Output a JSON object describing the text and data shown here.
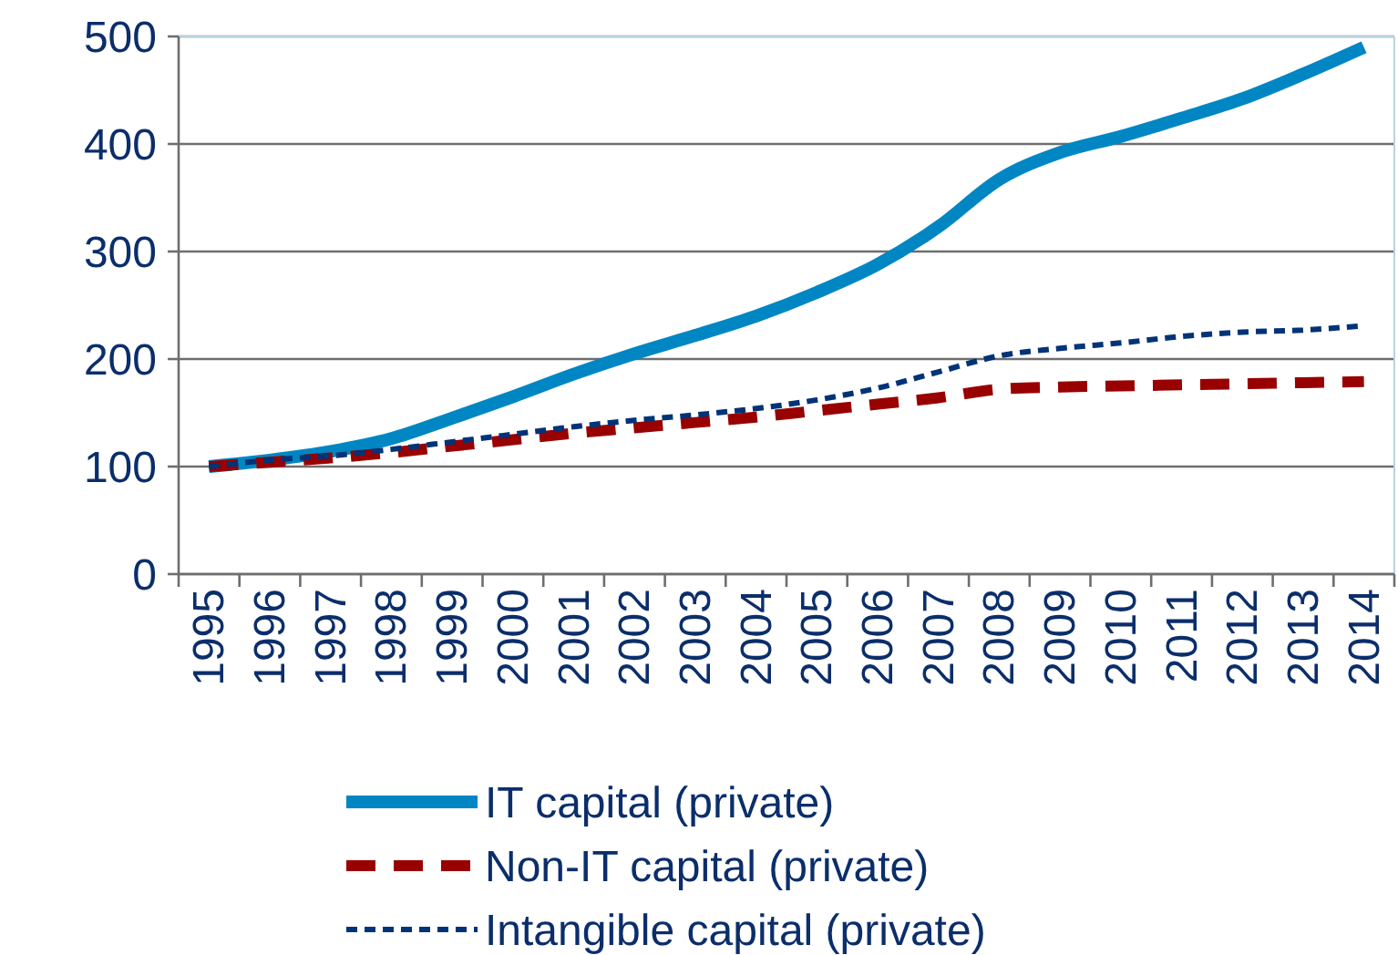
{
  "chart_data": {
    "type": "line",
    "categories": [
      "1995",
      "1996",
      "1997",
      "1998",
      "1999",
      "2000",
      "2001",
      "2002",
      "2003",
      "2004",
      "2005",
      "2006",
      "2007",
      "2008",
      "2009",
      "2010",
      "2011",
      "2012",
      "2013",
      "2014"
    ],
    "ylim": [
      0,
      500
    ],
    "yticks": [
      0,
      100,
      200,
      300,
      400,
      500
    ],
    "grid": "y",
    "legend": "bottom",
    "series": [
      {
        "name": "IT capital (private)",
        "color": "#0086c3",
        "line_style": "solid",
        "values": [
          100,
          106,
          114,
          126,
          145,
          165,
          186,
          205,
          222,
          240,
          262,
          288,
          323,
          367,
          392,
          407,
          424,
          442,
          465,
          490
        ]
      },
      {
        "name": "Non-IT capital (private)",
        "color": "#990000",
        "line_style": "dashed",
        "values": [
          100,
          104,
          108,
          113,
          119,
          125,
          131,
          136,
          141,
          146,
          152,
          158,
          164,
          172,
          174,
          175,
          176,
          177,
          178,
          179
        ]
      },
      {
        "name": "Intangible capital (private)",
        "color": "#003377",
        "line_style": "dotted",
        "values": [
          100,
          106,
          110,
          116,
          123,
          130,
          137,
          143,
          148,
          154,
          162,
          173,
          188,
          203,
          210,
          215,
          221,
          225,
          227,
          231
        ]
      }
    ]
  }
}
